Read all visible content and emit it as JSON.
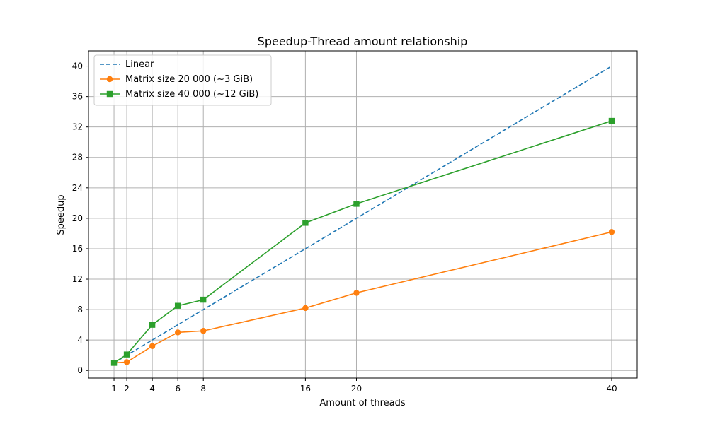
{
  "chart_data": {
    "type": "line",
    "title": "Speedup-Thread amount relationship",
    "xlabel": "Amount of threads",
    "ylabel": "Speedup",
    "x_ticks": [
      1,
      2,
      4,
      6,
      8,
      16,
      20,
      40
    ],
    "y_ticks": [
      0,
      4,
      8,
      12,
      16,
      20,
      24,
      28,
      32,
      36,
      40
    ],
    "xlim": [
      -1,
      42
    ],
    "ylim": [
      -1,
      42
    ],
    "grid": true,
    "legend_position": "upper-left",
    "series": [
      {
        "name": "Linear",
        "color": "#1f77b4",
        "style": "dashed",
        "marker": "none",
        "x": [
          1,
          40
        ],
        "y": [
          1,
          40
        ]
      },
      {
        "name": "Matrix size 20 000 (~3 GiB)",
        "color": "#ff7f0e",
        "style": "solid",
        "marker": "circle",
        "x": [
          1,
          2,
          4,
          6,
          8,
          16,
          20,
          40
        ],
        "y": [
          1.0,
          1.1,
          3.2,
          5.0,
          5.2,
          8.2,
          10.2,
          18.2
        ]
      },
      {
        "name": "Matrix size 40 000 (~12 GiB)",
        "color": "#2ca02c",
        "style": "solid",
        "marker": "square",
        "x": [
          1,
          2,
          4,
          6,
          8,
          16,
          20,
          40
        ],
        "y": [
          1.0,
          2.1,
          6.0,
          8.5,
          9.3,
          19.4,
          21.9,
          32.8
        ]
      }
    ]
  }
}
